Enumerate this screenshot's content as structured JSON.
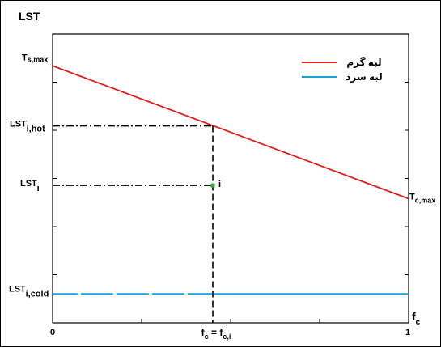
{
  "chart_data": {
    "type": "line",
    "title": "",
    "y_axis": {
      "label": "LST"
    },
    "x_axis": {
      "label_main": "f",
      "label_sub": "c",
      "tick_min": "0",
      "tick_max": "1",
      "tick_mid_main": "f",
      "tick_mid_sub": "c",
      "tick_mid_eq": " = f",
      "tick_mid_sub2": "c,i"
    },
    "x_range": [
      0,
      1
    ],
    "y_range": [
      0,
      1
    ],
    "lines": [
      {
        "name": "لبه گرم",
        "color": "#e01b1b",
        "points": [
          [
            0,
            0.89
          ],
          [
            1,
            0.43
          ]
        ]
      },
      {
        "name": "لبه سرد",
        "color": "#1a9fd8",
        "points": [
          [
            0,
            0.1
          ],
          [
            1,
            0.1
          ]
        ]
      }
    ],
    "guides": {
      "fc_i": 0.45,
      "lst_i_hot": 0.682,
      "lst_i": 0.476,
      "lst_i_cold": 0.1
    },
    "point_i": {
      "x": 0.45,
      "y": 0.476,
      "color": "#2eaa3a",
      "label": "i"
    },
    "y_labels": {
      "ts_max_main": "T",
      "ts_max_sub": "s,max",
      "hot_main": "LST",
      "hot_sub": "i,hot",
      "lsti_main": "LST",
      "lsti_sub": "i",
      "cold_main": "LST",
      "cold_sub": "i,cold"
    },
    "right_label": {
      "main": "T",
      "sub": "c,max"
    },
    "legend": {
      "placement": "top-right",
      "entries": [
        "لبه گرم",
        "لبه سرد"
      ]
    }
  }
}
